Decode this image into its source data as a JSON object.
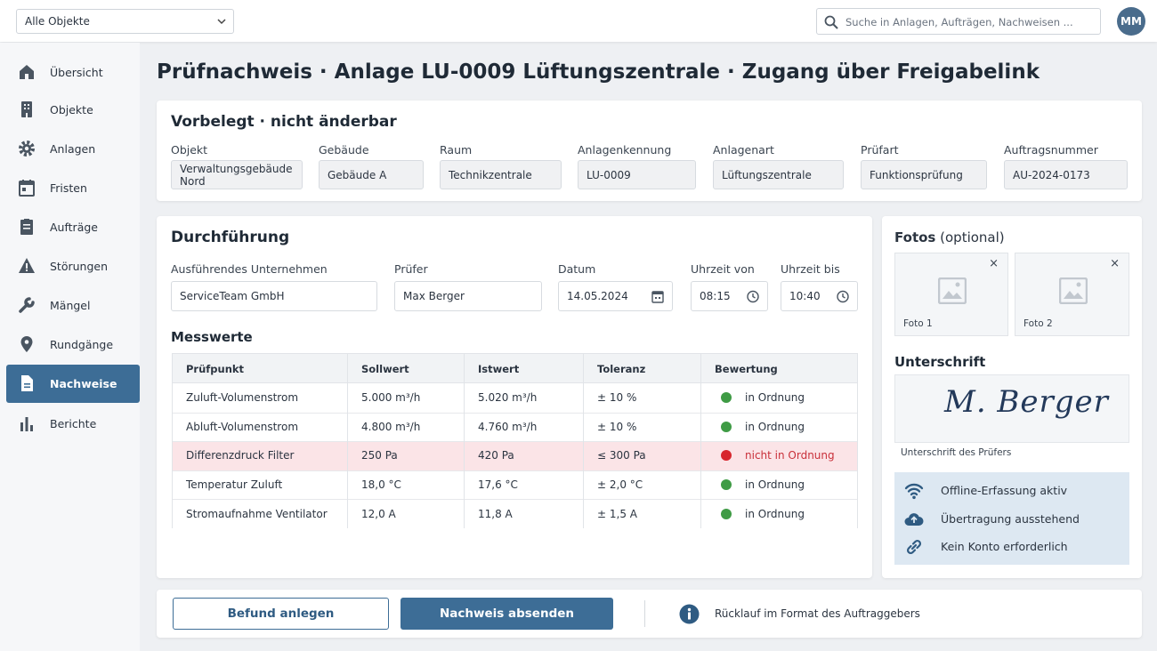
{
  "topbar": {
    "object_select": "Alle Objekte",
    "search_placeholder": "Suche in Anlagen, Aufträgen, Nachweisen ...",
    "avatar": "MM"
  },
  "nav": {
    "items": [
      "Übersicht",
      "Objekte",
      "Anlagen",
      "Fristen",
      "Aufträge",
      "Störungen",
      "Mängel",
      "Rundgänge",
      "Nachweise",
      "Berichte"
    ],
    "active": 8
  },
  "page_title": "Prüfnachweis · Anlage LU-0009 Lüftungszentrale · Zugang über Freigabelink",
  "prefilled": {
    "title": "Vorbelegt · nicht änderbar",
    "fields": [
      {
        "label": "Objekt",
        "value": "Verwaltungsgebäude Nord"
      },
      {
        "label": "Gebäude",
        "value": "Gebäude A"
      },
      {
        "label": "Raum",
        "value": "Technikzentrale"
      },
      {
        "label": "Anlagenkennung",
        "value": "LU-0009"
      },
      {
        "label": "Anlagenart",
        "value": "Lüftungszentrale"
      },
      {
        "label": "Prüfart",
        "value": "Funktionsprüfung"
      },
      {
        "label": "Auftragsnummer",
        "value": "AU-2024-0173"
      }
    ]
  },
  "execution": {
    "title": "Durchführung",
    "fields": [
      {
        "label": "Ausführendes Unternehmen",
        "value": "ServiceTeam GmbH"
      },
      {
        "label": "Prüfer",
        "value": "Max Berger"
      },
      {
        "label": "Datum",
        "value": "14.05.2024"
      },
      {
        "label": "Uhrzeit von",
        "value": "08:15"
      },
      {
        "label": "Uhrzeit bis",
        "value": "10:40"
      }
    ]
  },
  "measurements": {
    "title": "Messwerte",
    "columns": [
      "Prüfpunkt",
      "Sollwert",
      "Istwert",
      "Toleranz",
      "Bewertung"
    ],
    "rows": [
      {
        "cells": [
          "Zuluft-Volumenstrom",
          "5.000 m³/h",
          "5.020 m³/h",
          "± 10 %",
          "in Ordnung"
        ],
        "status_color": "#3f9b45",
        "text_color": "#2b3440",
        "background": "#ffffff"
      },
      {
        "cells": [
          "Abluft-Volumenstrom",
          "4.800 m³/h",
          "4.760 m³/h",
          "± 10 %",
          "in Ordnung"
        ],
        "status_color": "#3f9b45",
        "text_color": "#2b3440",
        "background": "#ffffff"
      },
      {
        "cells": [
          "Differenzdruck Filter",
          "250 Pa",
          "420 Pa",
          "≤ 300 Pa",
          "nicht in Ordnung"
        ],
        "status_color": "#d7262d",
        "text_color": "#c9303a",
        "background": "#fbe4e7"
      },
      {
        "cells": [
          "Temperatur Zuluft",
          "18,0 °C",
          "17,6 °C",
          "± 2,0 °C",
          "in Ordnung"
        ],
        "status_color": "#3f9b45",
        "text_color": "#2b3440",
        "background": "#ffffff"
      },
      {
        "cells": [
          "Stromaufnahme Ventilator",
          "12,0 A",
          "11,8 A",
          "± 1,5 A",
          "in Ordnung"
        ],
        "status_color": "#3f9b45",
        "text_color": "#2b3440",
        "background": "#ffffff"
      }
    ]
  },
  "photos": {
    "title": "Fotos",
    "note": "(optional)",
    "items": [
      "Foto 1",
      "Foto 2"
    ]
  },
  "signature": {
    "title": "Unterschrift",
    "name": "M. Berger",
    "caption": "Unterschrift des Prüfers"
  },
  "status": {
    "items": [
      "Offline-Erfassung aktiv",
      "Übertragung ausstehend",
      "Kein Konto erforderlich"
    ]
  },
  "footer": {
    "secondary_button": "Befund anlegen",
    "primary_button": "Nachweis absenden",
    "info": "Rücklauf im Format des Auftraggebers"
  }
}
